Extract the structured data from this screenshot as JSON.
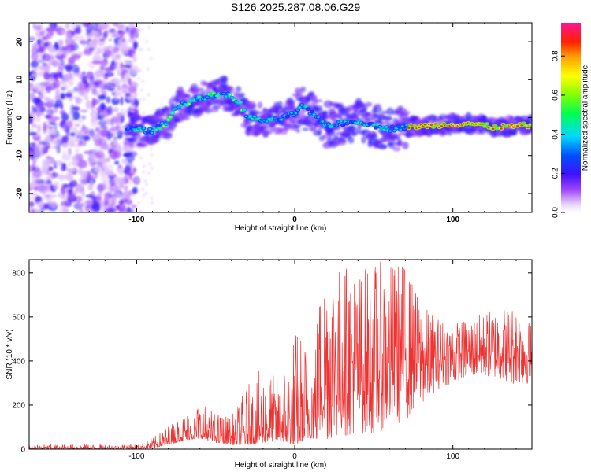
{
  "title": "S126.2025.287.08.06.G29",
  "chart_data": [
    {
      "type": "heatmap",
      "title": "S126.2025.287.08.06.G29",
      "xlabel": "Height of straight line (km)",
      "ylabel": "Frequency (Hz)",
      "xlim": [
        -168,
        150
      ],
      "ylim": [
        -25,
        25
      ],
      "xticks": [
        -100,
        0,
        100
      ],
      "yticks": [
        -20,
        -10,
        0,
        10,
        20
      ],
      "colorbar": {
        "label": "Normalized spectral amplitude",
        "range": [
          0,
          0.97
        ],
        "ticks": [
          "0.0",
          "0.2",
          "0.4",
          "0.6",
          "0.8"
        ],
        "tick_values": [
          0.0,
          0.2,
          0.4,
          0.6,
          0.8
        ]
      },
      "ridge": {
        "description_points": [
          {
            "x": -105,
            "y": -3
          },
          {
            "x": -90,
            "y": -3.5
          },
          {
            "x": -80,
            "y": -1
          },
          {
            "x": -75,
            "y": 3
          },
          {
            "x": -60,
            "y": 5
          },
          {
            "x": -45,
            "y": 6.5
          },
          {
            "x": -35,
            "y": 4
          },
          {
            "x": -30,
            "y": 0
          },
          {
            "x": -15,
            "y": -1
          },
          {
            "x": 0,
            "y": 1
          },
          {
            "x": 5,
            "y": 3
          },
          {
            "x": 20,
            "y": -2
          },
          {
            "x": 40,
            "y": -1
          },
          {
            "x": 60,
            "y": -3
          },
          {
            "x": 70,
            "y": -2.5
          },
          {
            "x": 90,
            "y": -2
          },
          {
            "x": 110,
            "y": -1.5
          },
          {
            "x": 125,
            "y": -2.5
          },
          {
            "x": 150,
            "y": -2
          }
        ]
      }
    },
    {
      "type": "line",
      "xlabel": "Height of straight line (km)",
      "ylabel": "SNR (10 * v/v)",
      "xlim": [
        -168,
        150
      ],
      "ylim": [
        0,
        860
      ],
      "xticks": [
        -100,
        0,
        100
      ],
      "yticks": [
        0,
        200,
        400,
        600,
        800
      ],
      "series": [
        {
          "name": "SNR",
          "color": "#ee3333",
          "envelope": [
            {
              "x": -168,
              "low": 0,
              "high": 20
            },
            {
              "x": -100,
              "low": 0,
              "high": 25
            },
            {
              "x": -90,
              "low": 5,
              "high": 50
            },
            {
              "x": -80,
              "low": 20,
              "high": 110
            },
            {
              "x": -70,
              "low": 40,
              "high": 160
            },
            {
              "x": -60,
              "low": 50,
              "high": 220
            },
            {
              "x": -50,
              "low": 30,
              "high": 170
            },
            {
              "x": -40,
              "low": 20,
              "high": 150
            },
            {
              "x": -30,
              "low": 20,
              "high": 290
            },
            {
              "x": -20,
              "low": 30,
              "high": 380
            },
            {
              "x": -10,
              "low": 40,
              "high": 320
            },
            {
              "x": 0,
              "low": 20,
              "high": 560
            },
            {
              "x": 10,
              "low": 50,
              "high": 520
            },
            {
              "x": 20,
              "low": 40,
              "high": 850
            },
            {
              "x": 30,
              "low": 60,
              "high": 850
            },
            {
              "x": 40,
              "low": 70,
              "high": 820
            },
            {
              "x": 50,
              "low": 70,
              "high": 850
            },
            {
              "x": 60,
              "low": 100,
              "high": 850
            },
            {
              "x": 70,
              "low": 130,
              "high": 850
            },
            {
              "x": 80,
              "low": 200,
              "high": 660
            },
            {
              "x": 90,
              "low": 270,
              "high": 600
            },
            {
              "x": 100,
              "low": 300,
              "high": 580
            },
            {
              "x": 110,
              "low": 330,
              "high": 590
            },
            {
              "x": 120,
              "low": 330,
              "high": 620
            },
            {
              "x": 130,
              "low": 320,
              "high": 650
            },
            {
              "x": 140,
              "low": 290,
              "high": 660
            },
            {
              "x": 150,
              "low": 300,
              "high": 570
            }
          ]
        }
      ]
    }
  ]
}
